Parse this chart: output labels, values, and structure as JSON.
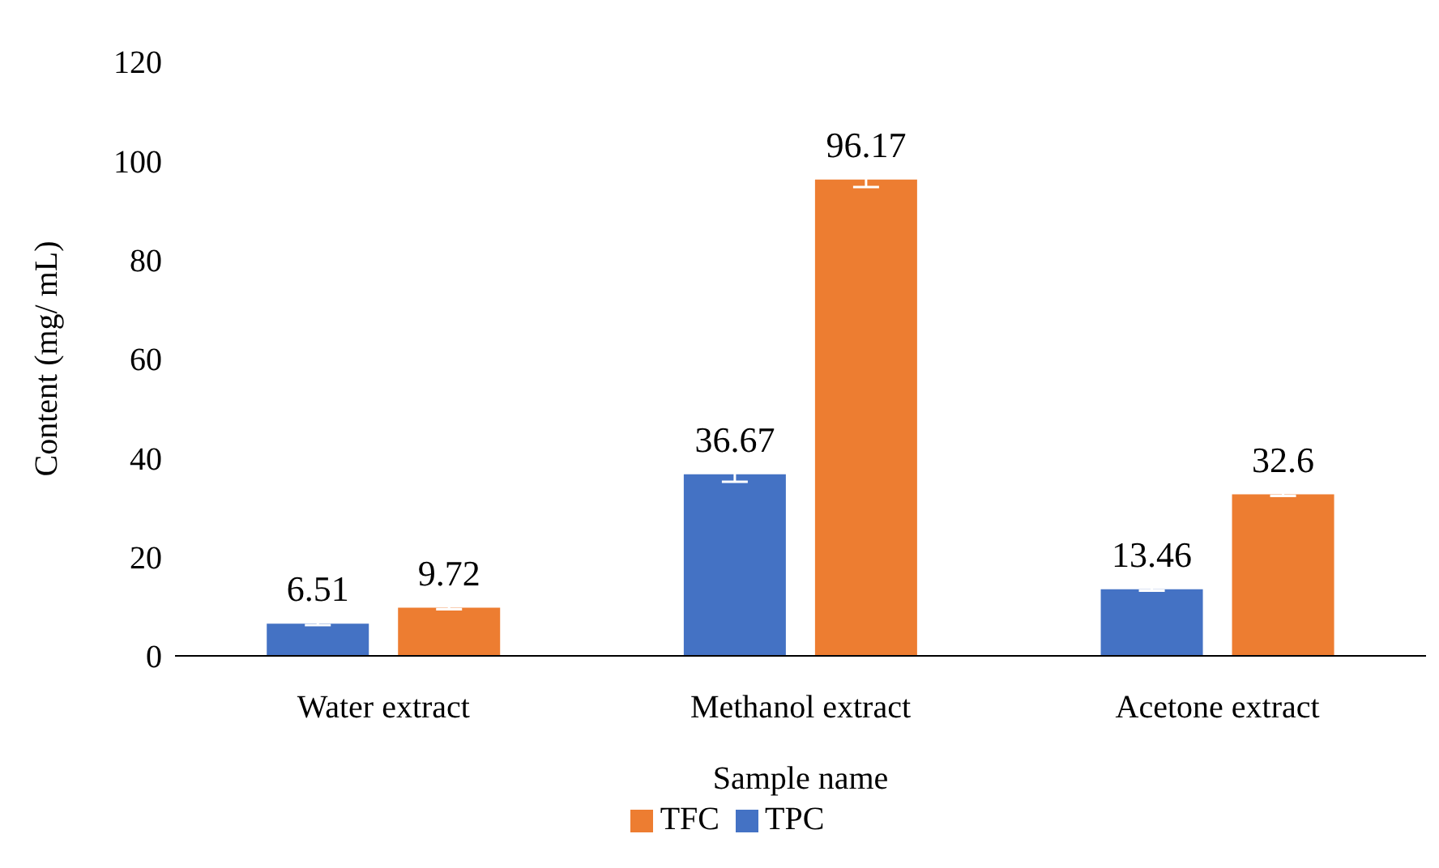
{
  "chart_data": {
    "type": "bar",
    "xlabel": "Sample name",
    "ylabel": "Content (mg/ mL)",
    "categories": [
      "Water extract",
      "Methanol extract",
      "Acetone extract"
    ],
    "series": [
      {
        "name": "TPC",
        "color": "#4472c4",
        "values": [
          6.51,
          36.67,
          13.46
        ],
        "errors": [
          0.3,
          1.5,
          0.3
        ]
      },
      {
        "name": "TFC",
        "color": "#ed7d31",
        "values": [
          9.72,
          96.17,
          32.6
        ],
        "errors": [
          0.3,
          1.5,
          0.3
        ]
      }
    ],
    "ylim": [
      0,
      120
    ],
    "yticks": [
      0,
      20,
      40,
      60,
      80,
      100,
      120
    ],
    "grid": false,
    "legend": "bottom",
    "data_labels": true
  }
}
